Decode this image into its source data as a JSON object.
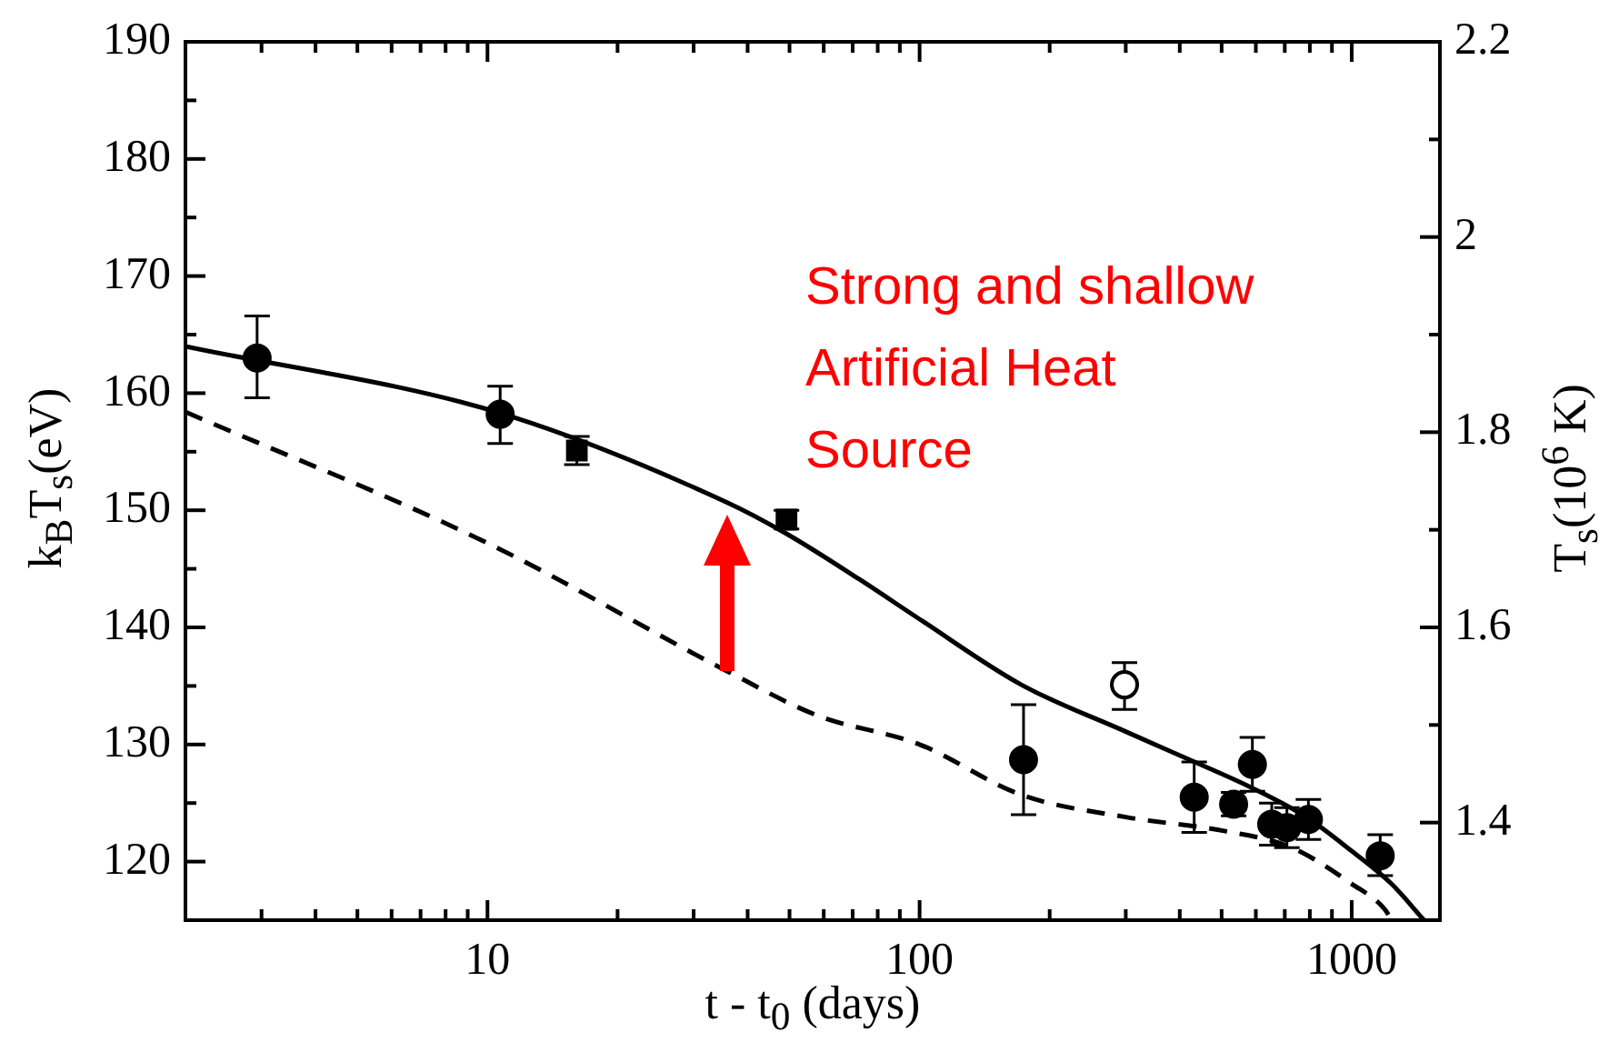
{
  "chart_data": {
    "type": "scatter",
    "xlabel": "t - t$_{0}$ (days)",
    "ylabel": "k$_{B}$T$_{s}$(eV)",
    "y2label": "T$_{s}$(10$^{6}$ K)",
    "annotations": [
      "Strong and shallow\nArtificial Heat\nSource"
    ],
    "log": "x",
    "grid": false,
    "legend": false,
    "xlim": [
      2,
      1600
    ],
    "xticks": [
      {
        "value": 2,
        "label": null
      },
      {
        "value": 3,
        "label": null
      },
      {
        "value": 4,
        "label": null
      },
      {
        "value": 5,
        "label": null
      },
      {
        "value": 6,
        "label": null
      },
      {
        "value": 7,
        "label": null
      },
      {
        "value": 8,
        "label": null
      },
      {
        "value": 9,
        "label": null
      },
      10,
      {
        "value": 20,
        "label": null
      },
      {
        "value": 30,
        "label": null
      },
      {
        "value": 40,
        "label": null
      },
      {
        "value": 50,
        "label": null
      },
      {
        "value": 60,
        "label": null
      },
      {
        "value": 70,
        "label": null
      },
      {
        "value": 80,
        "label": null
      },
      {
        "value": 90,
        "label": null
      },
      100,
      {
        "value": 200,
        "label": null
      },
      {
        "value": 300,
        "label": null
      },
      {
        "value": 400,
        "label": null
      },
      {
        "value": 500,
        "label": null
      },
      {
        "value": 600,
        "label": null
      },
      {
        "value": 700,
        "label": null
      },
      {
        "value": 800,
        "label": null
      },
      {
        "value": 900,
        "label": null
      },
      1000
    ],
    "ylim": [
      115,
      190
    ],
    "yticks": [
      120,
      {
        "value": 125,
        "label": null
      },
      130,
      {
        "value": 135,
        "label": null
      },
      140,
      {
        "value": 145,
        "label": null
      },
      150,
      {
        "value": 155,
        "label": null
      },
      160,
      {
        "value": 165,
        "label": null
      },
      170,
      {
        "value": 175,
        "label": null
      },
      180,
      {
        "value": 185,
        "label": null
      },
      190
    ],
    "y2lim": [
      1.3,
      2.2
    ],
    "y2ticks": [
      1.4,
      {
        "value": 1.5,
        "label": null
      },
      1.6,
      {
        "value": 1.7,
        "label": null
      },
      1.8,
      {
        "value": 1.9,
        "label": null
      },
      2,
      {
        "value": 2.1,
        "label": null
      },
      2.2
    ],
    "series": [
      {
        "type": "line",
        "line_style": "solid",
        "marker": "none",
        "color": "#000000",
        "x": [
          2,
          10.7,
          35.7,
          49.2,
          72.6,
          100,
          172,
          300,
          427,
          587,
          785,
          1000,
          1236,
          1470
        ],
        "values": [
          164.0,
          158.3,
          150.7,
          148.0,
          144.1,
          140.7,
          135.1,
          131.1,
          128.6,
          126.3,
          123.8,
          120.9,
          118.1,
          115.0
        ]
      },
      {
        "type": "line",
        "line_style": "dashed",
        "marker": "none",
        "color": "#000000",
        "x": [
          2,
          10,
          35.7,
          57.8,
          100,
          172,
          300,
          510,
          726,
          1000,
          1194,
          1236
        ],
        "values": [
          158.4,
          147.2,
          136.3,
          132.5,
          130.0,
          125.7,
          123.8,
          122.6,
          121.2,
          118.1,
          115.9,
          115.0
        ]
      },
      {
        "type": "scatter",
        "marker": "circle",
        "color": "#000000",
        "x": [
          2.93,
          10.7,
          174,
          432,
          533,
          589,
          653,
          708,
          794,
          1164
        ],
        "values": [
          163.0,
          158.2,
          128.7,
          125.5,
          124.9,
          128.3,
          123.2,
          122.9,
          123.6,
          120.5
        ],
        "errors": [
          [
            159.6,
            166.6
          ],
          [
            155.7,
            160.6
          ],
          [
            124.0,
            133.4
          ],
          [
            122.5,
            128.5
          ],
          [
            123.9,
            125.9
          ],
          [
            126.0,
            130.6
          ],
          [
            121.4,
            125.0
          ],
          [
            121.2,
            124.6
          ],
          [
            121.9,
            125.3
          ],
          [
            118.8,
            122.3
          ]
        ]
      },
      {
        "type": "scatter",
        "marker": "square",
        "color": "#000000",
        "x": [
          16.1,
          49.2
        ],
        "values": [
          155.1,
          149.2
        ],
        "errors": [
          [
            153.9,
            156.3
          ],
          [
            148.4,
            150.0
          ]
        ]
      },
      {
        "type": "scatter",
        "marker": "circle",
        "color": "#ffffff",
        "x": [
          298
        ],
        "values": [
          135.1
        ],
        "errors": [
          [
            133.0,
            137.0
          ]
        ]
      }
    ]
  }
}
